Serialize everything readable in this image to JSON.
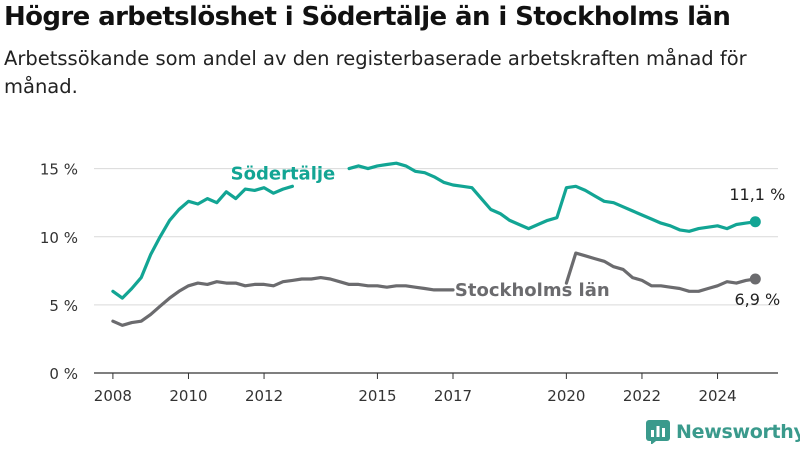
{
  "title": "Högre arbetslöshet i Södertälje än i Stockholms län",
  "subtitle": "Arbetssökande som andel av den registerbaserade arbetskraften månad för månad.",
  "brand": {
    "name": "Newsworthy",
    "icon": "newsworthy-logo-icon",
    "color": "#3a9a8c"
  },
  "chart_data": {
    "type": "line",
    "title": "Högre arbetslöshet i Södertälje än i Stockholms län",
    "subtitle": "Arbetssökande som andel av den registerbaserade arbetskraften månad för månad.",
    "xlabel": "",
    "ylabel": "",
    "xlim": [
      2007.5,
      2025.6
    ],
    "ylim": [
      0,
      16
    ],
    "x_ticks": [
      2008,
      2010,
      2012,
      2015,
      2017,
      2020,
      2022,
      2024
    ],
    "x_tick_labels": [
      "2008",
      "2010",
      "2012",
      "2015",
      "2017",
      "2020",
      "2022",
      "2024"
    ],
    "y_ticks": [
      0,
      5,
      10,
      15
    ],
    "y_tick_labels": [
      "0 %",
      "5 %",
      "10 %",
      "15 %"
    ],
    "grid": "horizontal",
    "legend": "inline labels",
    "series": [
      {
        "name": "Södertälje",
        "color": "#12a594",
        "end_label": "11,1 %",
        "segments": [
          {
            "x": [
              2008.0,
              2008.25,
              2008.5,
              2008.75,
              2009.0,
              2009.25,
              2009.5,
              2009.75,
              2010.0,
              2010.25,
              2010.5,
              2010.75,
              2011.0,
              2011.25,
              2011.5,
              2011.75,
              2012.0,
              2012.25,
              2012.5,
              2012.75
            ],
            "y": [
              6.0,
              5.5,
              6.2,
              7.0,
              8.7,
              10.0,
              11.2,
              12.0,
              12.6,
              12.4,
              12.8,
              12.5,
              13.3,
              12.8,
              13.5,
              13.4,
              13.6,
              13.2,
              13.5,
              13.7
            ]
          },
          {
            "x": [
              2014.25,
              2014.5,
              2014.75,
              2015.0,
              2015.25,
              2015.5,
              2015.75,
              2016.0,
              2016.25,
              2016.5,
              2016.75,
              2017.0,
              2017.25,
              2017.5,
              2017.75,
              2018.0,
              2018.25,
              2018.5,
              2018.75,
              2019.0,
              2019.25,
              2019.5,
              2019.75,
              2020.0,
              2020.25,
              2020.5,
              2020.75,
              2021.0,
              2021.25,
              2021.5,
              2021.75,
              2022.0,
              2022.25,
              2022.5,
              2022.75,
              2023.0,
              2023.25,
              2023.5,
              2023.75,
              2024.0,
              2024.25,
              2024.5,
              2024.75,
              2025.0
            ],
            "y": [
              15.0,
              15.2,
              15.0,
              15.2,
              15.3,
              15.4,
              15.2,
              14.8,
              14.7,
              14.4,
              14.0,
              13.8,
              13.7,
              13.6,
              12.8,
              12.0,
              11.7,
              11.2,
              10.9,
              10.6,
              10.9,
              11.2,
              11.4,
              13.6,
              13.7,
              13.4,
              13.0,
              12.6,
              12.5,
              12.2,
              11.9,
              11.6,
              11.3,
              11.0,
              10.8,
              10.5,
              10.4,
              10.6,
              10.7,
              10.8,
              10.6,
              10.9,
              11.0,
              11.1
            ]
          }
        ]
      },
      {
        "name": "Stockholms län",
        "color": "#6b6b6e",
        "end_label": "6,9 %",
        "segments": [
          {
            "x": [
              2008.0,
              2008.25,
              2008.5,
              2008.75,
              2009.0,
              2009.25,
              2009.5,
              2009.75,
              2010.0,
              2010.25,
              2010.5,
              2010.75,
              2011.0,
              2011.25,
              2011.5,
              2011.75,
              2012.0,
              2012.25,
              2012.5,
              2012.75,
              2013.0,
              2013.25,
              2013.5,
              2013.75,
              2014.0,
              2014.25,
              2014.5,
              2014.75,
              2015.0,
              2015.25,
              2015.5,
              2015.75,
              2016.0,
              2016.25,
              2016.5,
              2016.75,
              2017.0
            ],
            "y": [
              3.8,
              3.5,
              3.7,
              3.8,
              4.3,
              4.9,
              5.5,
              6.0,
              6.4,
              6.6,
              6.5,
              6.7,
              6.6,
              6.6,
              6.4,
              6.5,
              6.5,
              6.4,
              6.7,
              6.8,
              6.9,
              6.9,
              7.0,
              6.9,
              6.7,
              6.5,
              6.5,
              6.4,
              6.4,
              6.3,
              6.4,
              6.4,
              6.3,
              6.2,
              6.1,
              6.1,
              6.1
            ]
          },
          {
            "x": [
              2020.0,
              2020.25,
              2020.5,
              2020.75,
              2021.0,
              2021.25,
              2021.5,
              2021.75,
              2022.0,
              2022.25,
              2022.5,
              2022.75,
              2023.0,
              2023.25,
              2023.5,
              2023.75,
              2024.0,
              2024.25,
              2024.5,
              2024.75,
              2025.0
            ],
            "y": [
              6.6,
              8.8,
              8.6,
              8.4,
              8.2,
              7.8,
              7.6,
              7.0,
              6.8,
              6.4,
              6.4,
              6.3,
              6.2,
              6.0,
              6.0,
              6.2,
              6.4,
              6.7,
              6.6,
              6.8,
              6.9
            ]
          }
        ]
      }
    ]
  }
}
